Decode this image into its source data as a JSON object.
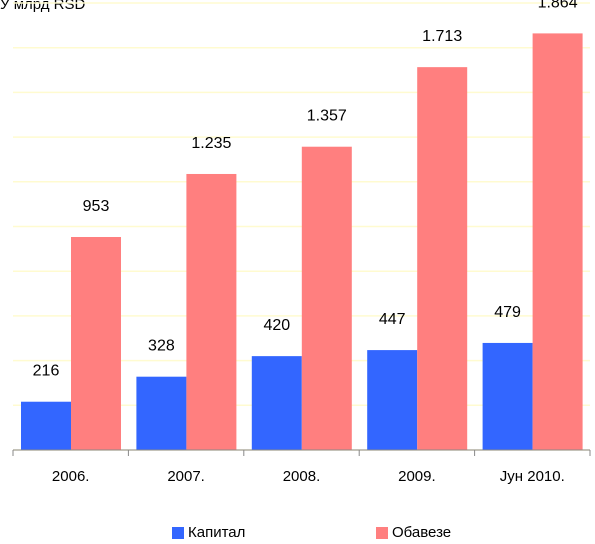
{
  "unit_label": "У млрд RSD",
  "legend": [
    {
      "label": "Капитал",
      "color": "#3366ff"
    },
    {
      "label": "Обавезе",
      "color": "#ff7f7f"
    }
  ],
  "chart_data": {
    "type": "bar",
    "categories": [
      "2006.",
      "2007.",
      "2008.",
      "2009.",
      "Јун 2010."
    ],
    "series": [
      {
        "name": "Капитал",
        "values": [
          216,
          328,
          420,
          447,
          479
        ],
        "labels": [
          "216",
          "328",
          "420",
          "447",
          "479"
        ],
        "color": "#3366ff"
      },
      {
        "name": "Обавезе",
        "values": [
          953,
          1235,
          1357,
          1713,
          1864
        ],
        "labels": [
          "953",
          "1.235",
          "1.357",
          "1.713",
          "1.864"
        ],
        "color": "#ff7f7f"
      }
    ],
    "ylim": [
      0,
      2000
    ],
    "grid": true,
    "grid_color": "#fffbd0",
    "legend_position": "bottom"
  }
}
